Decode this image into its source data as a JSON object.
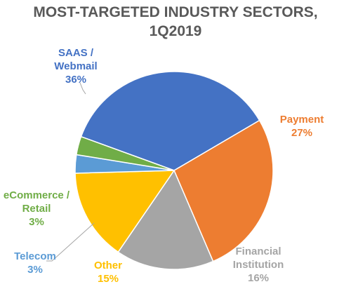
{
  "chart_data": {
    "type": "pie",
    "title_lines": [
      "MOST-TARGETED INDUSTRY SECTORS,",
      "1Q2019"
    ],
    "slices": [
      {
        "key": "saas",
        "label_lines": [
          "SAAS /",
          "Webmail"
        ],
        "value_label": "36%",
        "value": 36,
        "color": "#4472c4",
        "label_color": "#4472c4"
      },
      {
        "key": "payment",
        "label_lines": [
          "Payment"
        ],
        "value_label": "27%",
        "value": 27,
        "color": "#ed7d31",
        "label_color": "#ed7d31"
      },
      {
        "key": "financial",
        "label_lines": [
          "Financial",
          "Institution"
        ],
        "value_label": "16%",
        "value": 16,
        "color": "#a5a5a5",
        "label_color": "#a5a5a5"
      },
      {
        "key": "other",
        "label_lines": [
          "Other"
        ],
        "value_label": "15%",
        "value": 15,
        "color": "#ffc000",
        "label_color": "#ffc000"
      },
      {
        "key": "telecom",
        "label_lines": [
          "Telecom"
        ],
        "value_label": "3%",
        "value": 3,
        "color": "#5b9bd5",
        "label_color": "#5b9bd5"
      },
      {
        "key": "ecommerce",
        "label_lines": [
          "eCommerce /",
          "Retail"
        ],
        "value_label": "3%",
        "value": 3,
        "color": "#70ad47",
        "label_color": "#70ad47"
      }
    ]
  }
}
